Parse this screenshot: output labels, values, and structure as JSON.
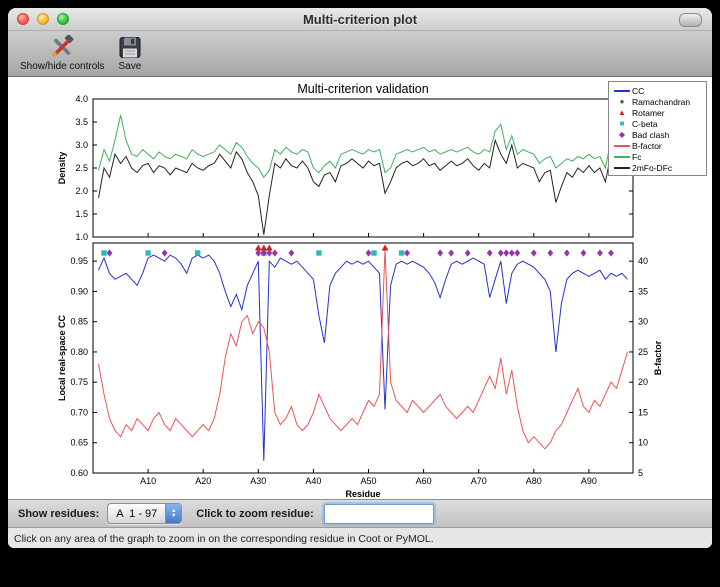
{
  "window": {
    "title": "Multi-criterion plot"
  },
  "toolbar": {
    "buttons": [
      {
        "label": "Show/hide controls"
      },
      {
        "label": "Save"
      }
    ]
  },
  "icons": {
    "up": "▲",
    "down": "▼"
  },
  "controls": {
    "show_residues_label": "Show residues:",
    "chain_value": "A  1 - 97",
    "zoom_label": "Click to zoom residue:",
    "zoom_value": ""
  },
  "status": "Click on any area of the graph to zoom in on the corresponding residue in Coot or PyMOL.",
  "legend": [
    {
      "label": "CC",
      "sample": "line",
      "color": "#2233cc"
    },
    {
      "label": "Ramachandran",
      "sample": "circle",
      "color": "#1a7a1a"
    },
    {
      "label": "Rotamer",
      "sample": "triangle",
      "color": "#cc2222"
    },
    {
      "label": "C-beta",
      "sample": "square",
      "color": "#2fb8b8"
    },
    {
      "label": "Bad clash",
      "sample": "diamond",
      "color": "#9933aa"
    },
    {
      "label": "B-factor",
      "sample": "line",
      "color": "#ee5555"
    },
    {
      "label": "Fc",
      "sample": "line",
      "color": "#44ad5e"
    },
    {
      "label": "2mFo-DFc",
      "sample": "line",
      "color": "#222222"
    }
  ],
  "chart_data": [
    {
      "type": "line",
      "title": "Multi-criterion validation",
      "ylabel": "Density",
      "ylim": [
        1.0,
        4.0
      ],
      "yticks": [
        {
          "v": 1.0,
          "label": "1.0"
        },
        {
          "v": 1.5,
          "label": "1.5"
        },
        {
          "v": 2.0,
          "label": "2.0"
        },
        {
          "v": 2.5,
          "label": "2.5"
        },
        {
          "v": 3.0,
          "label": "3.0"
        },
        {
          "v": 3.5,
          "label": "3.5"
        },
        {
          "v": 4.0,
          "label": "4.0"
        }
      ],
      "x_range": [
        0,
        98
      ],
      "series": [
        {
          "name": "Fc",
          "color": "#44ad5e",
          "values": [
            2.45,
            2.9,
            2.65,
            3.1,
            3.65,
            3.1,
            2.8,
            2.75,
            2.9,
            2.8,
            2.7,
            2.85,
            2.75,
            2.7,
            2.8,
            2.75,
            2.7,
            2.9,
            2.8,
            2.75,
            2.8,
            2.85,
            3.0,
            2.9,
            2.8,
            3.05,
            2.95,
            2.75,
            2.6,
            2.5,
            2.3,
            2.45,
            2.9,
            2.8,
            2.95,
            2.85,
            2.8,
            2.9,
            2.85,
            2.5,
            2.4,
            2.55,
            2.65,
            2.5,
            2.8,
            2.85,
            2.9,
            2.85,
            2.8,
            2.9,
            2.85,
            2.9,
            2.4,
            2.5,
            2.8,
            2.85,
            2.9,
            2.85,
            2.9,
            2.95,
            2.85,
            2.9,
            2.8,
            2.85,
            2.9,
            2.85,
            2.9,
            2.95,
            2.85,
            2.8,
            2.9,
            2.85,
            3.3,
            3.45,
            2.9,
            3.2,
            2.8,
            2.9,
            2.85,
            2.8,
            2.6,
            2.7,
            2.75,
            2.5,
            2.6,
            2.7,
            2.65,
            2.75,
            2.7,
            2.8,
            2.7,
            2.75,
            2.5,
            3.1,
            3.3,
            3.2,
            3.35
          ]
        },
        {
          "name": "2mFo-DFc",
          "color": "#222222",
          "values": [
            1.85,
            2.5,
            2.3,
            2.8,
            2.6,
            2.75,
            2.5,
            2.4,
            2.55,
            2.6,
            2.4,
            2.55,
            2.5,
            2.35,
            2.5,
            2.45,
            2.4,
            2.6,
            2.5,
            2.45,
            2.55,
            2.6,
            2.8,
            2.65,
            2.5,
            2.85,
            2.7,
            2.4,
            2.2,
            1.9,
            1.05,
            1.9,
            2.6,
            2.5,
            2.7,
            2.55,
            2.5,
            2.65,
            2.5,
            2.2,
            2.1,
            2.35,
            2.4,
            2.2,
            2.55,
            2.6,
            2.7,
            2.6,
            2.5,
            2.65,
            2.55,
            2.6,
            1.95,
            2.2,
            2.5,
            2.6,
            2.65,
            2.55,
            2.6,
            2.7,
            2.55,
            2.6,
            2.45,
            2.55,
            2.65,
            2.55,
            2.6,
            2.7,
            2.55,
            2.45,
            2.6,
            2.5,
            3.1,
            2.8,
            2.6,
            3.0,
            2.5,
            2.6,
            2.55,
            2.5,
            2.2,
            2.4,
            2.45,
            1.75,
            2.1,
            2.4,
            2.3,
            2.5,
            2.4,
            2.55,
            2.4,
            2.5,
            2.2,
            2.8,
            3.0,
            2.9,
            3.1
          ]
        }
      ]
    },
    {
      "type": "line",
      "xlabel": "Residue",
      "ylabel_left": "Local real-space CC",
      "ylabel_right": "B-factor",
      "ylim_left": [
        0.6,
        0.98
      ],
      "ylim_right": [
        5,
        43
      ],
      "x_range": [
        0,
        98
      ],
      "xticks": [
        {
          "pos": 10,
          "label": "A10"
        },
        {
          "pos": 20,
          "label": "A20"
        },
        {
          "pos": 30,
          "label": "A30"
        },
        {
          "pos": 40,
          "label": "A40"
        },
        {
          "pos": 50,
          "label": "A50"
        },
        {
          "pos": 60,
          "label": "A60"
        },
        {
          "pos": 70,
          "label": "A70"
        },
        {
          "pos": 80,
          "label": "A80"
        },
        {
          "pos": 90,
          "label": "A90"
        }
      ],
      "yticks_left": [
        {
          "v": 0.6,
          "label": "0.60"
        },
        {
          "v": 0.65,
          "label": "0.65"
        },
        {
          "v": 0.7,
          "label": "0.70"
        },
        {
          "v": 0.75,
          "label": "0.75"
        },
        {
          "v": 0.8,
          "label": "0.80"
        },
        {
          "v": 0.85,
          "label": "0.85"
        },
        {
          "v": 0.9,
          "label": "0.90"
        },
        {
          "v": 0.95,
          "label": "0.95"
        }
      ],
      "yticks_right": [
        {
          "v": 5,
          "label": "5"
        },
        {
          "v": 10,
          "label": "10"
        },
        {
          "v": 15,
          "label": "15"
        },
        {
          "v": 20,
          "label": "20"
        },
        {
          "v": 25,
          "label": "25"
        },
        {
          "v": 30,
          "label": "30"
        },
        {
          "v": 35,
          "label": "35"
        },
        {
          "v": 40,
          "label": "40"
        }
      ],
      "series": [
        {
          "name": "CC",
          "axis": "left",
          "color": "#2233cc",
          "values": [
            0.935,
            0.955,
            0.93,
            0.92,
            0.925,
            0.93,
            0.92,
            0.91,
            0.93,
            0.955,
            0.96,
            0.955,
            0.95,
            0.96,
            0.955,
            0.945,
            0.93,
            0.955,
            0.96,
            0.955,
            0.96,
            0.95,
            0.93,
            0.9,
            0.875,
            0.895,
            0.87,
            0.91,
            0.93,
            0.95,
            0.62,
            0.95,
            0.94,
            0.955,
            0.95,
            0.945,
            0.95,
            0.94,
            0.93,
            0.92,
            0.86,
            0.815,
            0.91,
            0.93,
            0.94,
            0.95,
            0.945,
            0.95,
            0.945,
            0.95,
            0.94,
            0.93,
            0.705,
            0.91,
            0.945,
            0.95,
            0.945,
            0.95,
            0.945,
            0.94,
            0.93,
            0.915,
            0.89,
            0.92,
            0.945,
            0.95,
            0.945,
            0.95,
            0.955,
            0.95,
            0.945,
            0.89,
            0.92,
            0.95,
            0.88,
            0.93,
            0.945,
            0.95,
            0.945,
            0.94,
            0.93,
            0.92,
            0.9,
            0.8,
            0.88,
            0.92,
            0.93,
            0.935,
            0.93,
            0.925,
            0.93,
            0.935,
            0.92,
            0.93,
            0.925,
            0.93,
            0.92
          ]
        },
        {
          "name": "B-factor",
          "axis": "right",
          "color": "#ee5555",
          "values": [
            23,
            18,
            14,
            12,
            11,
            13,
            12,
            14,
            13,
            12,
            14,
            15,
            13,
            12,
            14,
            13,
            12,
            11,
            12,
            13,
            12,
            14,
            18,
            24,
            28,
            26,
            30,
            31,
            28,
            30,
            29,
            25,
            15,
            13,
            14,
            16,
            13,
            12,
            13,
            15,
            18,
            16,
            14,
            13,
            12,
            13,
            14,
            13,
            15,
            17,
            16,
            18,
            42,
            20,
            17,
            16,
            15,
            17,
            16,
            15,
            16,
            17,
            18,
            16,
            15,
            14,
            15,
            16,
            15,
            17,
            19,
            21,
            19,
            24,
            18,
            22,
            16,
            12,
            10,
            11,
            10,
            9,
            10,
            12,
            13,
            15,
            17,
            19,
            16,
            15,
            17,
            16,
            18,
            20,
            19,
            22,
            25
          ]
        }
      ],
      "markers": [
        {
          "name": "Ramachandran",
          "shape": "circle",
          "color": "#1a7a1a",
          "cc_y": 0.972,
          "residues": []
        },
        {
          "name": "Rotamer",
          "shape": "triangle",
          "color": "#cc2222",
          "cc_y": 0.972,
          "residues": [
            30,
            31,
            32,
            53
          ]
        },
        {
          "name": "C-beta",
          "shape": "square",
          "color": "#2fb8b8",
          "cc_y": 0.9635,
          "residues": [
            2,
            10,
            19,
            31,
            41,
            51,
            56
          ]
        },
        {
          "name": "Bad clash",
          "shape": "diamond",
          "color": "#9933aa",
          "cc_y": 0.9635,
          "residues": [
            3,
            13,
            30,
            31,
            32,
            33,
            36,
            50,
            57,
            63,
            65,
            68,
            72,
            74,
            75,
            76,
            77,
            80,
            83,
            86,
            89,
            92,
            94
          ]
        }
      ]
    }
  ]
}
